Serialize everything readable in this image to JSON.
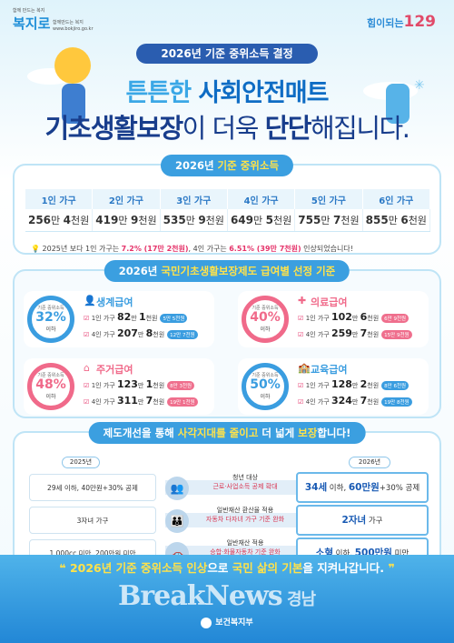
{
  "header": {
    "logo_left_small": "함께 만드는 복지",
    "logo_left_brand": "복지로",
    "logo_left_tagline": "함께만드는 복지",
    "logo_left_url": "www.bokjiro.go.kr",
    "logo_right_text": "힘이되는",
    "logo_right_number": "129",
    "pill": "2026년 기준 중위소득 결정",
    "title_line1_a": "튼튼한 ",
    "title_line1_b": "사회안전매트",
    "title_line2_a": "기초생활보장",
    "title_line2_b": "이 더욱 ",
    "title_line2_c": "단단",
    "title_line2_d": "해집니다."
  },
  "income": {
    "title_a": "2026년 ",
    "title_b": "기준 중위소득",
    "headers": [
      "1인 가구",
      "2인 가구",
      "3인 가구",
      "4인 가구",
      "5인 가구",
      "6인 가구"
    ],
    "values_main": [
      "256",
      "419",
      "535",
      "649",
      "755",
      "855"
    ],
    "values_unit1": [
      "만 ",
      "만 ",
      "만 ",
      "만 ",
      "만 ",
      "만 "
    ],
    "values_rest": [
      "4",
      "9",
      "9",
      "5",
      "7",
      "6"
    ],
    "values_unit2": [
      "천원",
      "천원",
      "천원",
      "천원",
      "천원",
      "천원"
    ],
    "note_a": "2025년 보다 1인 가구는 ",
    "note_b": "7.2% (17만 2천원)",
    "note_c": ", 4인 가구는 ",
    "note_d": "6.51% (39만 7천원)",
    "note_e": " 인상되었습니다!"
  },
  "benefits": {
    "title_a": "2026년 ",
    "title_b": "국민기초생활보장제도 급여별 선정 기준",
    "items": [
      {
        "label": "기준 중위소득",
        "pct": "32%",
        "less": "이하",
        "name": "생계급여",
        "icon": "person-icon",
        "l1": "1인 가구",
        "l1v": "82",
        "l1u": "만 ",
        "l1r": "1",
        "l1u2": "천원",
        "b1": "5만 5천원",
        "l2": "4인 가구",
        "l2v": "207",
        "l2u": "만 ",
        "l2r": "8",
        "l2u2": "천원",
        "b2": "12만 7천원",
        "color": "#3a9de0",
        "badge": "#3a9de0"
      },
      {
        "label": "기준 중위소득",
        "pct": "40%",
        "less": "이하",
        "name": "의료급여",
        "icon": "medical-icon",
        "l1": "1인 가구",
        "l1v": "102",
        "l1u": "만 ",
        "l1r": "6",
        "l1u2": "천원",
        "b1": "6만 9천원",
        "l2": "4인 가구",
        "l2v": "259",
        "l2u": "만 ",
        "l2r": "7",
        "l2u2": "천원",
        "b2": "15만 9천원",
        "color": "#f06a8a",
        "badge": "#ef6f8d"
      },
      {
        "label": "기준 중위소득",
        "pct": "48%",
        "less": "이하",
        "name": "주거급여",
        "icon": "house-icon",
        "l1": "1인 가구",
        "l1v": "123",
        "l1u": "만 ",
        "l1r": "1",
        "l1u2": "천원",
        "b1": "8만 3천원",
        "l2": "4인 가구",
        "l2v": "311",
        "l2u": "만 ",
        "l2r": "7",
        "l2u2": "천원",
        "b2": "19만 1천원",
        "color": "#f06a8a",
        "badge": "#ef6f8d"
      },
      {
        "label": "기준 중위소득",
        "pct": "50%",
        "less": "이하",
        "name": "교육급여",
        "icon": "school-icon",
        "l1": "1인 가구",
        "l1v": "128",
        "l1u": "만 ",
        "l1r": "2",
        "l1u2": "천원",
        "b1": "8만 6천원",
        "l2": "4인 가구",
        "l2v": "324",
        "l2u": "만 ",
        "l2r": "7",
        "l2u2": "천원",
        "b2": "19만 8천원",
        "color": "#3a9de0",
        "badge": "#3a9de0"
      }
    ]
  },
  "reform": {
    "title_a": "제도개선을 통해 ",
    "title_b": "사각지대를 줄이고",
    "title_c": " 더 넓게 ",
    "title_d": "보장",
    "title_e": "합니다!",
    "year_old": "2025년",
    "year_new": "2026년",
    "rows": [
      {
        "old": "29세 이하, 40만원+30% 공제",
        "mid1": "청년 대상",
        "mid2": "근로·사업소득 공제 확대",
        "new_a": "34세",
        "new_b": " 이하, ",
        "new_c": "60만원",
        "new_d": "+30% 공제"
      },
      {
        "old": "3자녀 가구",
        "mid1": "일반재산 환산율 적용",
        "mid2": "자동차 다자녀 가구 기준 완화",
        "new_a": "2자녀",
        "new_b": " 가구",
        "new_c": "",
        "new_d": ""
      },
      {
        "old": "1,000cc 미만, 200만원 미만",
        "mid1": "일반재산 적용",
        "mid2": "승합·화물자동차 기준 완화",
        "new_a": "소형",
        "new_b": " 이하, ",
        "new_c": "500만원",
        "new_d": " 미만"
      }
    ]
  },
  "footer": {
    "slogan_a": "2026년 ",
    "slogan_b": "기준 중위소득 인상",
    "slogan_c": "으로 ",
    "slogan_d": "국민 삶의 기본",
    "slogan_e": "을 지켜나갑니다.",
    "ministry": "보건복지부",
    "watermark_a": "BreakNews",
    "watermark_b": " 경남"
  }
}
